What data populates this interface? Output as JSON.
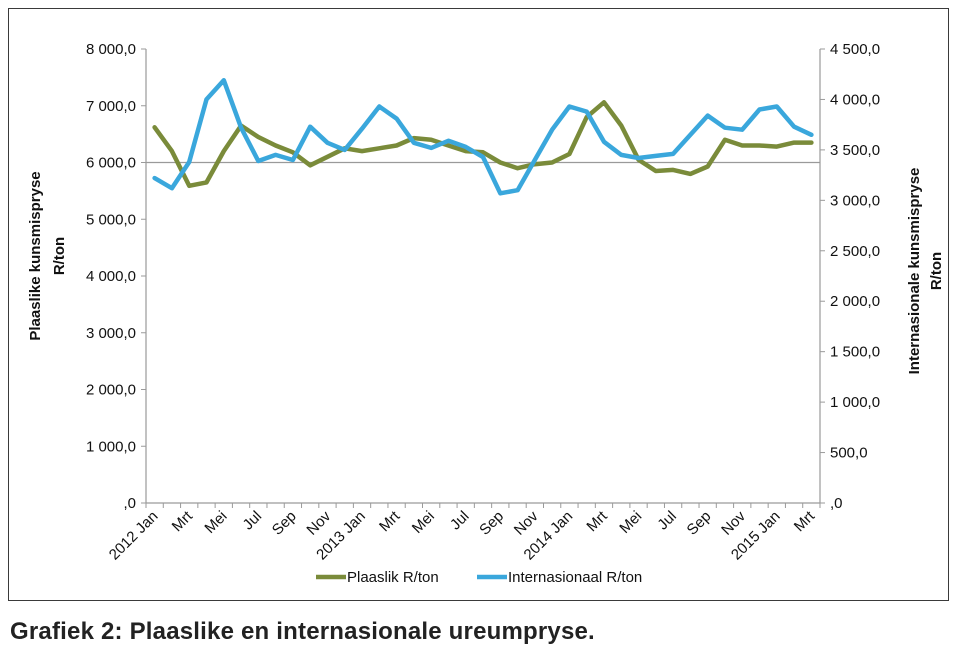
{
  "caption": "Grafiek 2: Plaaslike en internasionale ureumpryse.",
  "chart_data": {
    "type": "line",
    "title": "",
    "x": [
      "2012 Jan",
      "Feb",
      "Mrt",
      "Apr",
      "Mei",
      "Jun",
      "Jul",
      "Aug",
      "Sep",
      "Okt",
      "Nov",
      "Des",
      "2013 Jan",
      "Feb",
      "Mrt",
      "Apr",
      "Mei",
      "Jun",
      "Jul",
      "Aug",
      "Sep",
      "Okt",
      "Nov",
      "Des",
      "2014 Jan",
      "Feb",
      "Mrt",
      "Apr",
      "Mei",
      "Jun",
      "Jul",
      "Aug",
      "Sep",
      "Okt",
      "Nov",
      "Des",
      "2015 Jan",
      "Feb",
      "Mrt"
    ],
    "x_tick_labels": [
      "2012 Jan",
      "Mrt",
      "Mei",
      "Jul",
      "Sep",
      "Nov",
      "2013 Jan",
      "Mrt",
      "Mei",
      "Jul",
      "Sep",
      "Nov",
      "2014 Jan",
      "Mrt",
      "Mei",
      "Jul",
      "Sep",
      "Nov",
      "2015 Jan",
      "Mrt"
    ],
    "y_left_label_line1": "Plaaslike kunsmispryse",
    "y_left_label_line2": "R/ton",
    "y_right_label_line1": "Internasionale kunsmispryse",
    "y_right_label_line2": "R/ton",
    "y_left_ticks": [
      "8 000,0",
      "7 000,0",
      "6 000,0",
      "5 000,0",
      "4 000,0",
      "3 000,0",
      "2 000,0",
      "1 000,0",
      ",0"
    ],
    "y_right_ticks": [
      "4 500,0",
      "4 000,0",
      "3 500,0",
      "3 000,0",
      "2 500,0",
      "2 000,0",
      "1 500,0",
      "1 000,0",
      "500,0",
      ",0"
    ],
    "y_left_lim": [
      0,
      8000
    ],
    "y_right_lim": [
      0,
      4500
    ],
    "grid": "horizontal major gridline at 6 000,0 only",
    "legend_position": "bottom",
    "series": [
      {
        "name": "Plaaslik R/ton",
        "axis": "left",
        "color": "#7a8b3a",
        "values": [
          6620,
          6200,
          5590,
          5650,
          6200,
          6650,
          6450,
          6300,
          6180,
          5950,
          6100,
          6250,
          6200,
          6250,
          6300,
          6430,
          6400,
          6300,
          6200,
          6180,
          6000,
          5900,
          5970,
          6000,
          6150,
          6800,
          7060,
          6650,
          6050,
          5850,
          5870,
          5800,
          5930,
          6400,
          6300,
          6300,
          6280,
          6350,
          6350
        ]
      },
      {
        "name": "Internasionaal R/ton",
        "axis": "right",
        "color": "#3aa7dc",
        "values": [
          3220,
          3120,
          3380,
          4000,
          4190,
          3720,
          3390,
          3450,
          3400,
          3730,
          3570,
          3500,
          3710,
          3930,
          3810,
          3570,
          3520,
          3590,
          3530,
          3430,
          3070,
          3100,
          3400,
          3700,
          3930,
          3880,
          3580,
          3450,
          3420,
          3440,
          3460,
          3650,
          3840,
          3720,
          3700,
          3900,
          3930,
          3730,
          3650
        ]
      }
    ]
  }
}
